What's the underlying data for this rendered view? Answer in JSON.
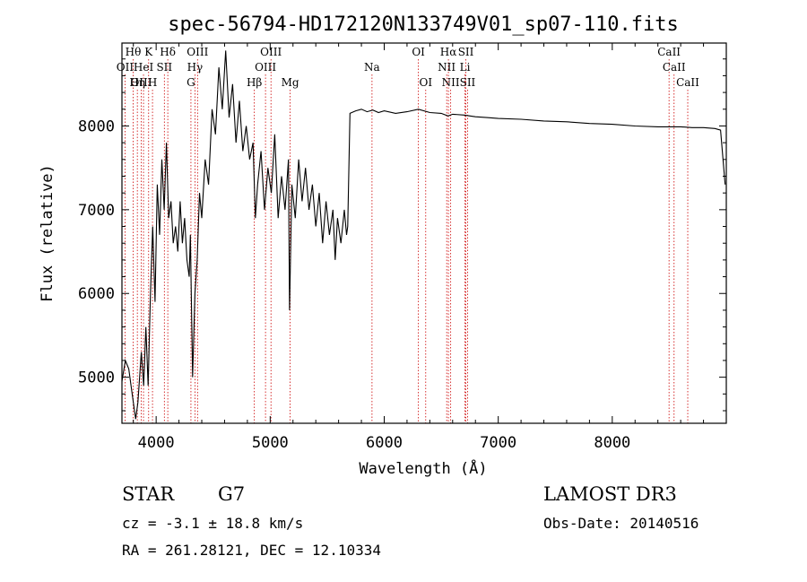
{
  "chart_data": {
    "type": "line",
    "title": "spec-56794-HD172120N133749V01_sp07-110.fits",
    "xlabel": "Wavelength (Å)",
    "ylabel": "Flux (relative)",
    "xlim": [
      3700,
      9000
    ],
    "ylim": [
      4450,
      8990
    ],
    "xticks": [
      4000,
      5000,
      6000,
      7000,
      8000
    ],
    "yticks": [
      5000,
      6000,
      7000,
      8000
    ],
    "tick_labels_x": [
      "4000",
      "5000",
      "6000",
      "7000",
      "8000"
    ],
    "tick_labels_y": [
      "5000",
      "6000",
      "7000",
      "8000"
    ],
    "line_color": "#000000",
    "marker_color": "#cc0000",
    "spectral_lines": [
      {
        "label": "Hθ",
        "wavelength": 3798,
        "row": 0
      },
      {
        "label": "K",
        "wavelength": 3934,
        "row": 0
      },
      {
        "label": "Hδ",
        "wavelength": 4102,
        "row": 0
      },
      {
        "label": "OIII",
        "wavelength": 4363,
        "row": 0
      },
      {
        "label": "OIII",
        "wavelength": 5007,
        "row": 0
      },
      {
        "label": "OI",
        "wavelength": 6300,
        "row": 0
      },
      {
        "label": "Hα",
        "wavelength": 6563,
        "row": 0
      },
      {
        "label": "SII",
        "wavelength": 6716,
        "row": 0
      },
      {
        "label": "CaII",
        "wavelength": 8498,
        "row": 0
      },
      {
        "label": "OII",
        "wavelength": 3727,
        "row": 1
      },
      {
        "label": "HeI",
        "wavelength": 3889,
        "row": 1
      },
      {
        "label": "SII",
        "wavelength": 4072,
        "row": 1
      },
      {
        "label": "Hγ",
        "wavelength": 4340,
        "row": 1
      },
      {
        "label": "OIII",
        "wavelength": 4959,
        "row": 1
      },
      {
        "label": "Na",
        "wavelength": 5893,
        "row": 1
      },
      {
        "label": "NII",
        "wavelength": 6548,
        "row": 1
      },
      {
        "label": "Li",
        "wavelength": 6708,
        "row": 1
      },
      {
        "label": "CaII",
        "wavelength": 8542,
        "row": 1
      },
      {
        "label": "OIII",
        "wavelength": 3869,
        "row": 2
      },
      {
        "label": "Hη",
        "wavelength": 3835,
        "row": 2
      },
      {
        "label": "H",
        "wavelength": 3968,
        "row": 2
      },
      {
        "label": "G",
        "wavelength": 4305,
        "row": 2
      },
      {
        "label": "Hβ",
        "wavelength": 4861,
        "row": 2
      },
      {
        "label": "Mg",
        "wavelength": 5175,
        "row": 2
      },
      {
        "label": "OI",
        "wavelength": 6364,
        "row": 2
      },
      {
        "label": "NII",
        "wavelength": 6583,
        "row": 2
      },
      {
        "label": "SII",
        "wavelength": 6731,
        "row": 2
      },
      {
        "label": "CaII",
        "wavelength": 8662,
        "row": 2
      }
    ],
    "series": [
      {
        "x": [
          3700,
          3730,
          3760,
          3790,
          3820,
          3840,
          3870,
          3890,
          3910,
          3930,
          3950,
          3970,
          3990,
          4010,
          4030,
          4050,
          4070,
          4090,
          4110,
          4130,
          4150,
          4170,
          4190,
          4210,
          4230,
          4250,
          4270,
          4290,
          4300,
          4320,
          4340,
          4360,
          4380,
          4400,
          4430,
          4460,
          4490,
          4520,
          4550,
          4580,
          4610,
          4640,
          4670,
          4700,
          4730,
          4760,
          4790,
          4820,
          4850,
          4870,
          4890,
          4920,
          4950,
          4980,
          5010,
          5040,
          5070,
          5100,
          5130,
          5160,
          5170,
          5190,
          5220,
          5250,
          5280,
          5310,
          5340,
          5370,
          5400,
          5430,
          5460,
          5490,
          5520,
          5550,
          5570,
          5590,
          5620,
          5650,
          5670,
          5680,
          5700,
          5750,
          5800,
          5850,
          5900,
          5950,
          6000,
          6100,
          6200,
          6300,
          6400,
          6500,
          6560,
          6600,
          6700,
          6800,
          6900,
          7000,
          7200,
          7400,
          7600,
          7800,
          8000,
          8200,
          8400,
          8500,
          8600,
          8700,
          8800,
          8900,
          8950,
          8990
        ],
        "y": [
          4950,
          5200,
          5100,
          4800,
          4500,
          4700,
          5300,
          4900,
          5600,
          4900,
          6000,
          6800,
          5900,
          7300,
          6700,
          7600,
          7000,
          7800,
          6900,
          7100,
          6600,
          6800,
          6500,
          7100,
          6600,
          6900,
          6400,
          6200,
          6700,
          5000,
          6000,
          6400,
          7200,
          6900,
          7600,
          7300,
          8200,
          7900,
          8700,
          8200,
          8900,
          8100,
          8500,
          7800,
          8300,
          7700,
          8000,
          7600,
          7800,
          6900,
          7300,
          7700,
          7000,
          7500,
          7200,
          7900,
          6900,
          7400,
          7000,
          7600,
          5800,
          7300,
          6900,
          7600,
          7100,
          7500,
          7000,
          7300,
          6800,
          7200,
          6600,
          7100,
          6700,
          7000,
          6400,
          6900,
          6600,
          7000,
          6700,
          6800,
          8150,
          8180,
          8200,
          8170,
          8190,
          8160,
          8180,
          8150,
          8170,
          8200,
          8160,
          8150,
          8120,
          8140,
          8130,
          8110,
          8100,
          8090,
          8080,
          8060,
          8050,
          8030,
          8020,
          8000,
          7990,
          7990,
          7990,
          7980,
          7980,
          7970,
          7950,
          7300
        ]
      }
    ]
  },
  "info": {
    "object_type": "STAR",
    "subclass": "G7",
    "survey": "LAMOST DR3",
    "cz": "cz = -3.1 ± 18.8 km/s",
    "obs_date": "Obs-Date: 20140516",
    "coords": "RA = 261.28121, DEC =  12.10334"
  }
}
